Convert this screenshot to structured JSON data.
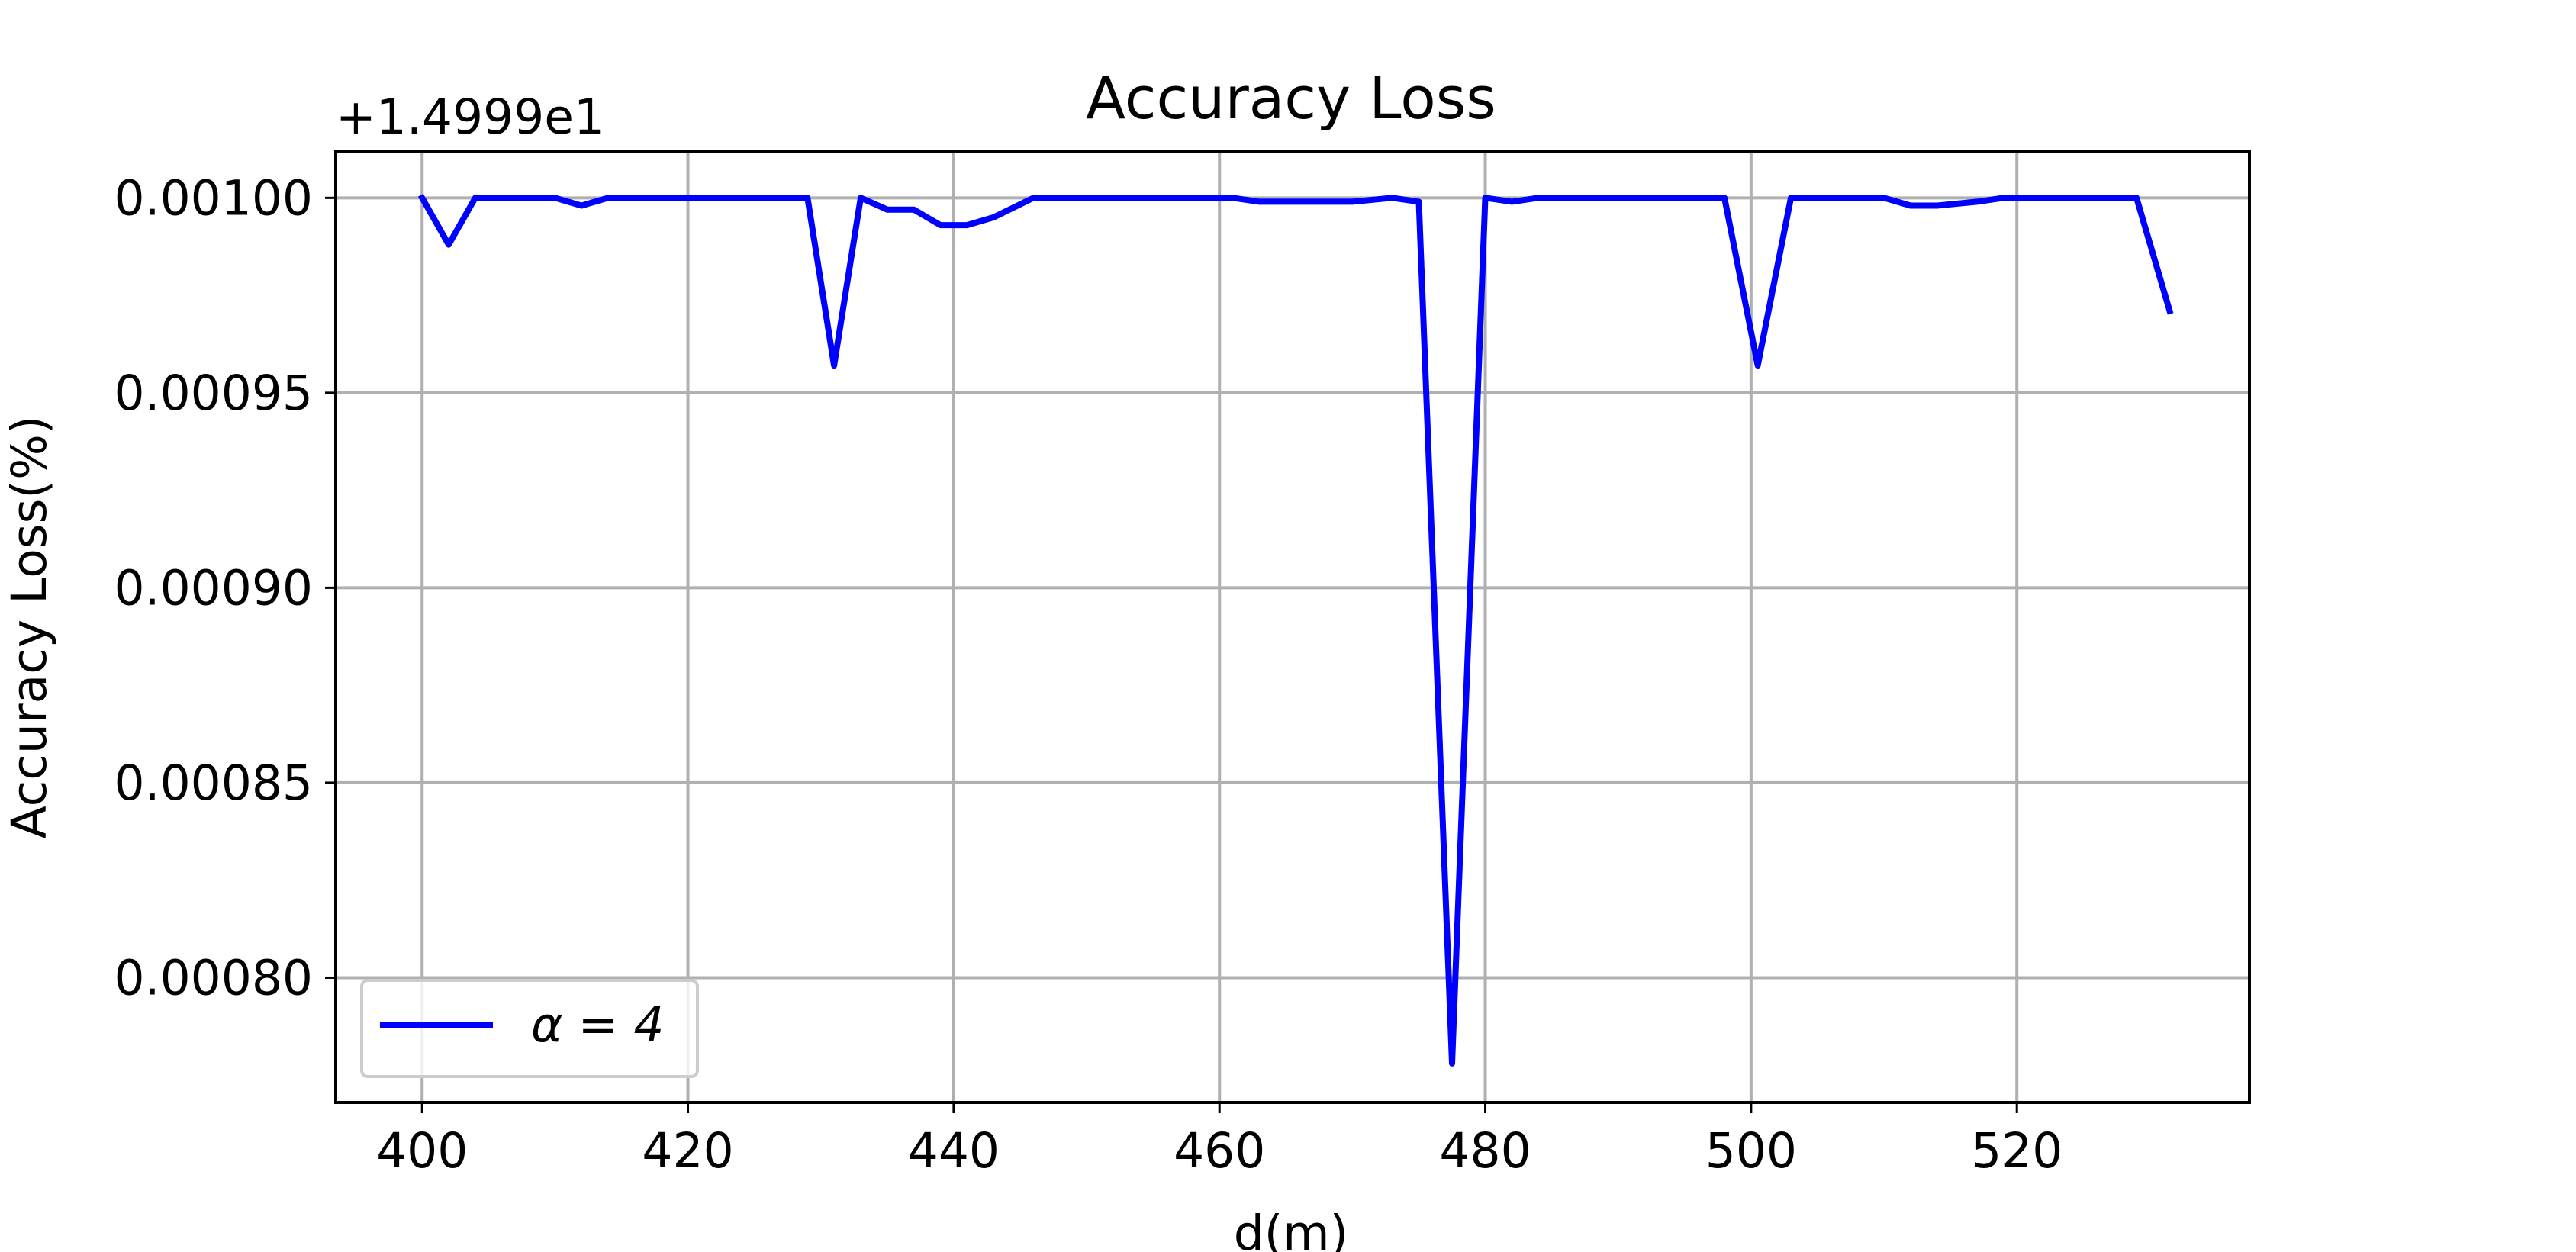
{
  "chart_data": {
    "type": "line",
    "title": "Accuracy Loss",
    "xlabel": "d(m)",
    "ylabel": "Accuracy Loss(%)",
    "y_offset_label": "+1.4999e1",
    "xlim": [
      393.5,
      537.5
    ],
    "ylim": [
      0.000768,
      0.001012
    ],
    "xticks": [
      400,
      420,
      440,
      460,
      480,
      500,
      520
    ],
    "yticks": [
      0.0008,
      0.00085,
      0.0009,
      0.00095,
      0.001
    ],
    "ytick_labels": [
      "0.00080",
      "0.00085",
      "0.00090",
      "0.00095",
      "0.00100"
    ],
    "grid": true,
    "legend_position": "lower-left",
    "series": [
      {
        "name": "α = 4",
        "color": "#0000ff",
        "x": [
          400,
          402,
          404,
          406,
          408,
          410,
          412,
          414,
          416,
          418,
          420,
          422,
          424,
          427,
          429,
          431,
          433,
          435,
          437,
          439,
          441,
          443,
          446,
          448,
          450,
          452,
          454,
          457,
          459,
          461,
          463,
          466,
          468,
          470,
          473,
          475,
          477.5,
          480,
          482,
          484,
          486,
          489,
          491,
          493,
          495,
          498,
          500.5,
          503,
          505,
          508,
          510,
          512,
          514,
          517,
          519,
          521,
          523,
          526,
          528,
          529,
          531.5
        ],
        "y": [
          0.001,
          0.000988,
          0.001,
          0.001,
          0.001,
          0.001,
          0.000998,
          0.001,
          0.001,
          0.001,
          0.001,
          0.001,
          0.001,
          0.001,
          0.001,
          0.000957,
          0.001,
          0.000997,
          0.000997,
          0.000993,
          0.000993,
          0.000995,
          0.001,
          0.001,
          0.001,
          0.001,
          0.001,
          0.001,
          0.001,
          0.001,
          0.000999,
          0.000999,
          0.000999,
          0.000999,
          0.001,
          0.000999,
          0.000778,
          0.001,
          0.000999,
          0.001,
          0.001,
          0.001,
          0.001,
          0.001,
          0.001,
          0.001,
          0.000957,
          0.001,
          0.001,
          0.001,
          0.001,
          0.000998,
          0.000998,
          0.000999,
          0.001,
          0.001,
          0.001,
          0.001,
          0.001,
          0.001,
          0.000971
        ]
      }
    ]
  }
}
